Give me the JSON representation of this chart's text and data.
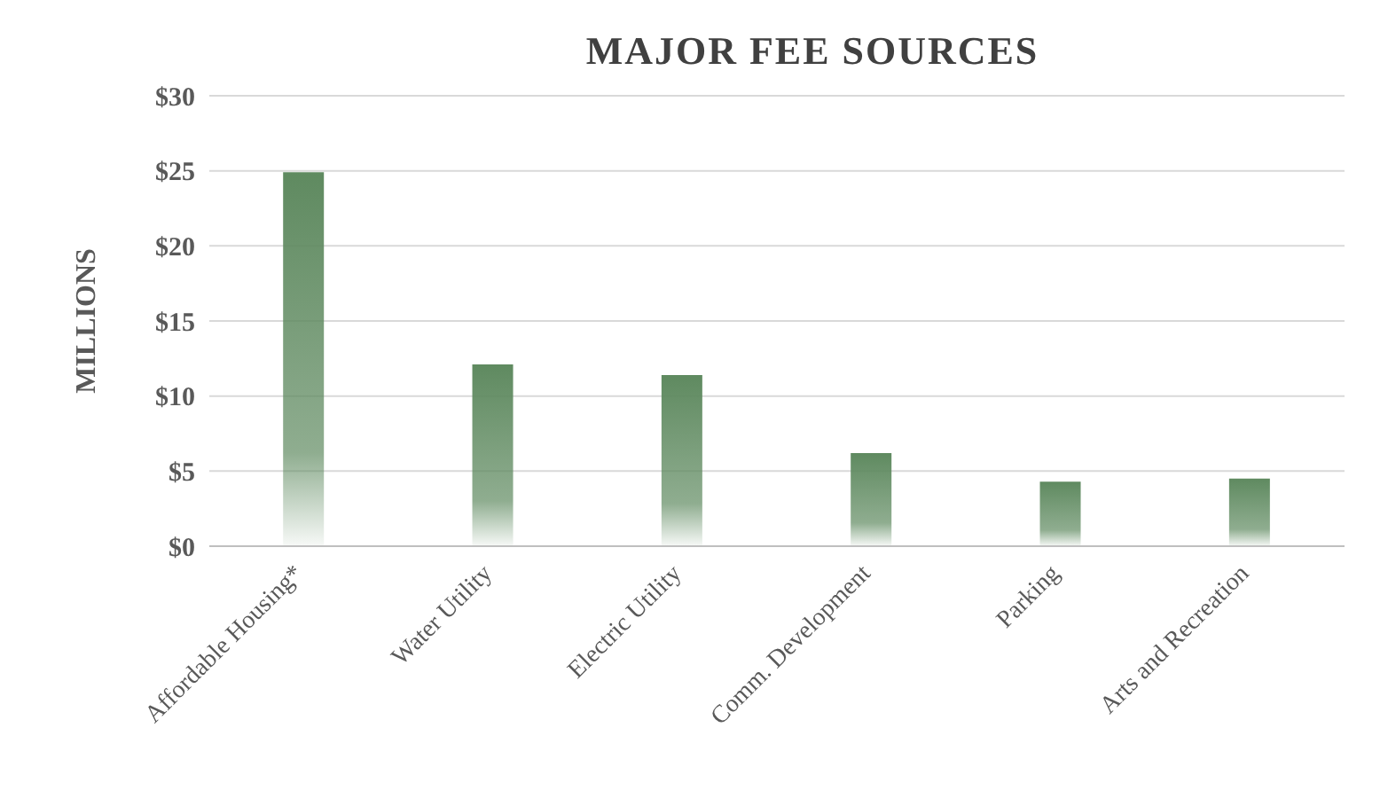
{
  "chart_data": {
    "type": "bar",
    "title": "MAJOR FEE SOURCES",
    "ylabel": "MILLIONS",
    "categories": [
      "Affordable Housing*",
      "Water Utility",
      "Electric Utility",
      "Comm. Development",
      "Parking",
      "Arts and Recreation"
    ],
    "values": [
      24.9,
      12.1,
      11.4,
      6.2,
      4.3,
      4.5
    ],
    "color": "#5f8a60",
    "ylim": [
      0,
      30
    ],
    "yticks": [
      {
        "value": 0,
        "label": "$0"
      },
      {
        "value": 5,
        "label": "$5"
      },
      {
        "value": 10,
        "label": "$10"
      },
      {
        "value": 15,
        "label": "$15"
      },
      {
        "value": 20,
        "label": "$20"
      },
      {
        "value": 25,
        "label": "$25"
      },
      {
        "value": 30,
        "label": "$30"
      }
    ],
    "grid": "y",
    "legend": false
  }
}
